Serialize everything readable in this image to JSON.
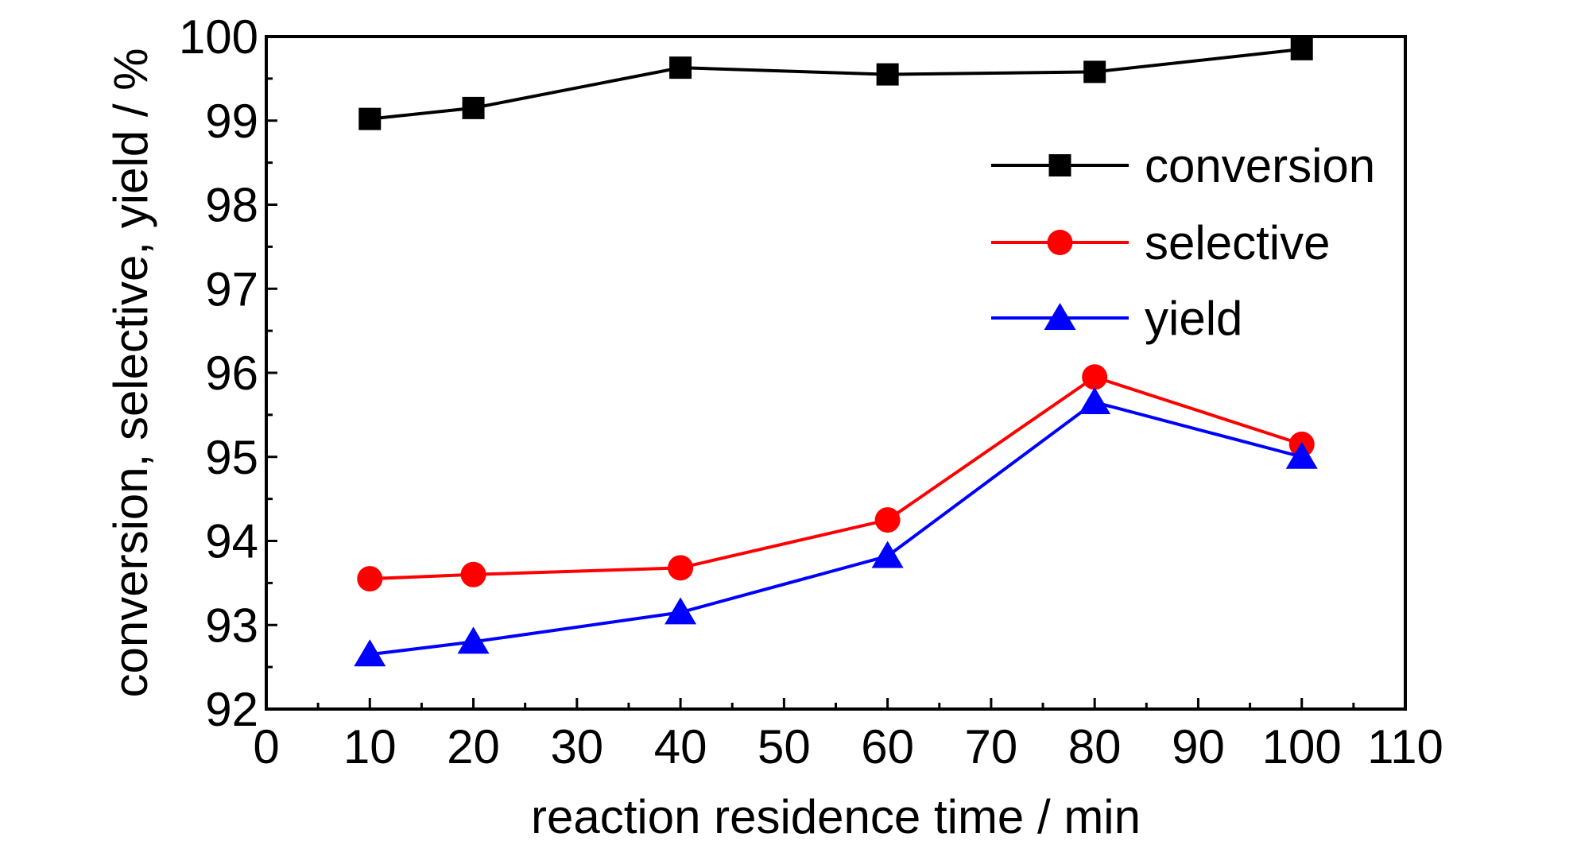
{
  "chart_data": {
    "type": "line",
    "title": "",
    "xlabel": "reaction residence time / min",
    "ylabel": "conversion, selective, yield / %",
    "xlim": [
      0,
      110
    ],
    "ylim": [
      92,
      100
    ],
    "xticks": [
      0,
      10,
      20,
      30,
      40,
      50,
      60,
      70,
      80,
      90,
      100,
      110
    ],
    "yticks": [
      92,
      93,
      94,
      95,
      96,
      97,
      98,
      99,
      100
    ],
    "grid": false,
    "legend_position": "top-right",
    "x": [
      10,
      20,
      40,
      60,
      80,
      100
    ],
    "series": [
      {
        "name": "conversion",
        "color": "#000000",
        "marker": "square",
        "values": [
          99.02,
          99.15,
          99.63,
          99.55,
          99.58,
          99.85
        ]
      },
      {
        "name": "selective",
        "color": "#ff0000",
        "marker": "circle",
        "values": [
          93.55,
          93.6,
          93.68,
          94.25,
          95.95,
          95.15
        ]
      },
      {
        "name": "yield",
        "color": "#0000ff",
        "marker": "triangle",
        "values": [
          92.65,
          92.8,
          93.15,
          93.82,
          95.65,
          95.0
        ]
      }
    ]
  }
}
